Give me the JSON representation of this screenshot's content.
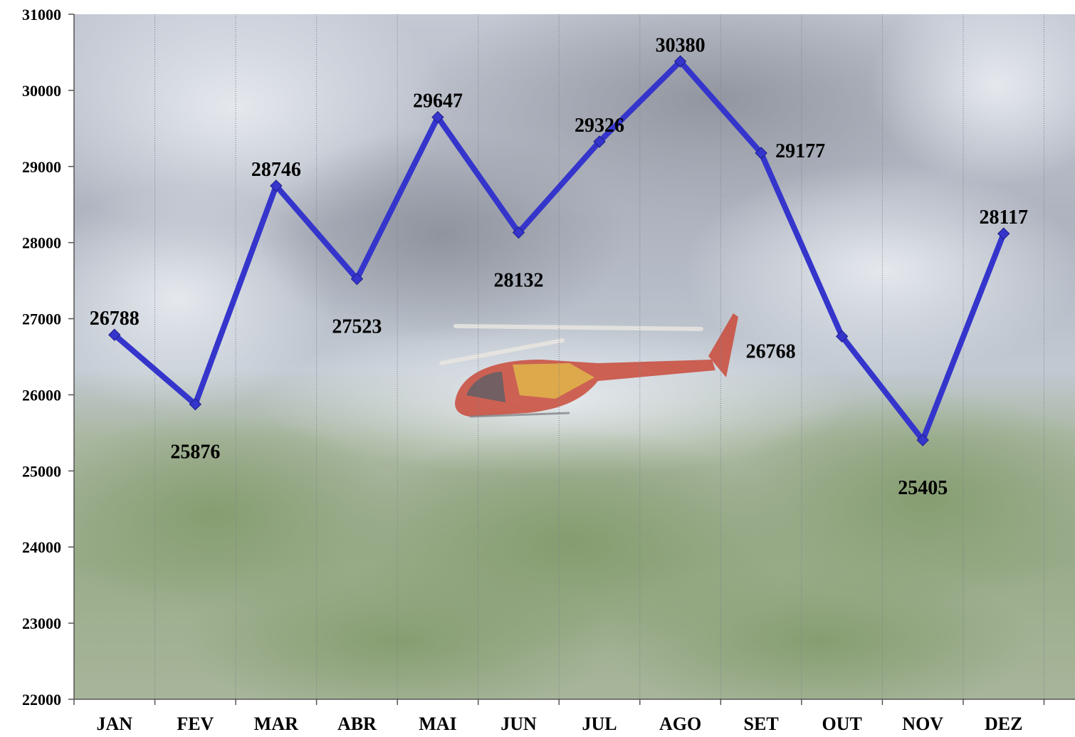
{
  "chart_data": {
    "type": "line",
    "title": "",
    "xlabel": "",
    "ylabel": "",
    "categories": [
      "JAN",
      "FEV",
      "MAR",
      "ABR",
      "MAI",
      "JUN",
      "JUL",
      "AGO",
      "SET",
      "OUT",
      "NOV",
      "DEZ"
    ],
    "series": [
      {
        "values": [
          26788,
          25876,
          28746,
          27523,
          29647,
          28132,
          29326,
          30380,
          29177,
          26768,
          25405,
          28117
        ],
        "color": "#3535cc",
        "marker": "diamond"
      }
    ],
    "ylim": [
      22000,
      31000
    ],
    "yticks": [
      "22000",
      "23000",
      "24000",
      "25000",
      "26000",
      "27000",
      "28000",
      "29000",
      "30000",
      "31000"
    ],
    "data_labels": [
      "26788",
      "25876",
      "28746",
      "27523",
      "29647",
      "28132",
      "29326",
      "30380",
      "29177",
      "26768",
      "25405",
      "28117"
    ],
    "grid": "vertical dotted lines between categories",
    "legend": "none",
    "background": "aerial photo of smoke over a forest with a red-and-yellow helicopter"
  }
}
